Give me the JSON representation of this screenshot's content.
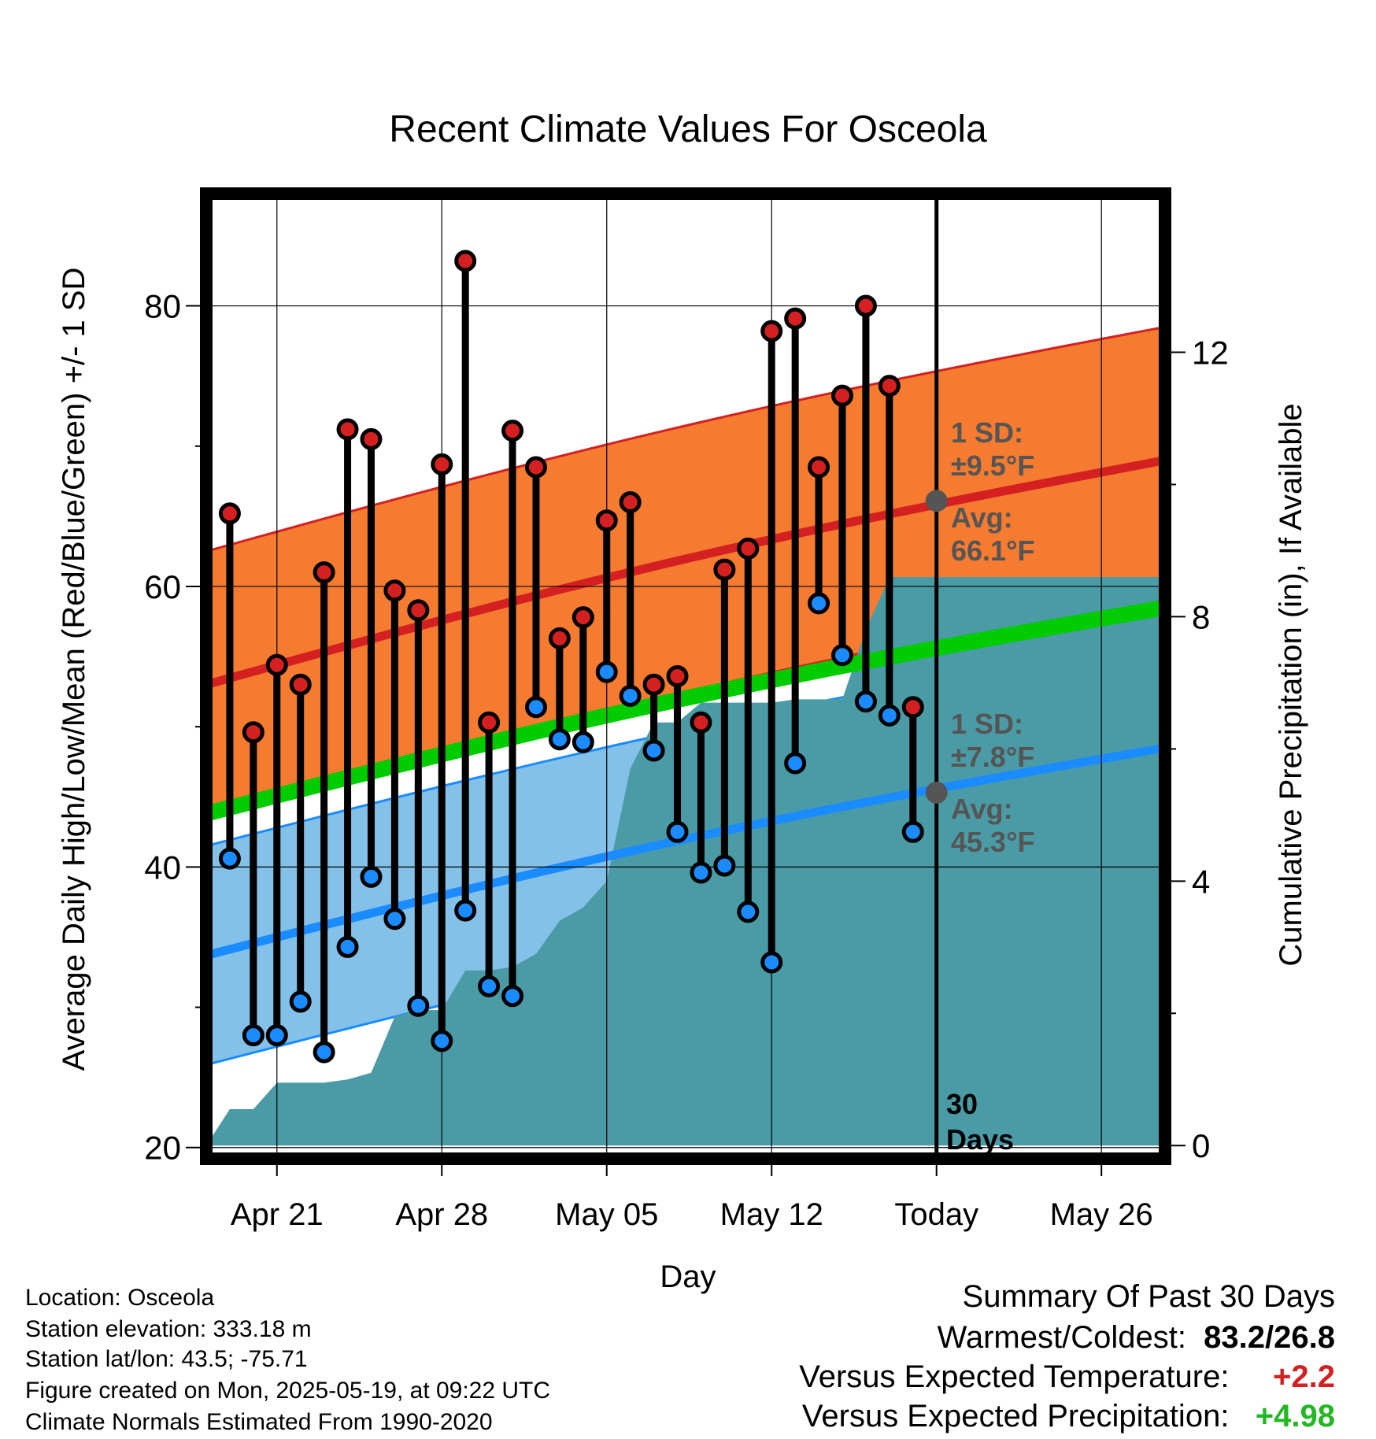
{
  "chart_data": {
    "type": "line",
    "title": "Recent Climate Values For Osceola",
    "xlabel": "Day",
    "ylabel": "Average Daily High/Low/Mean (Red/Blue/Green) +/- 1 SD",
    "y2label": "Cumulative Precipitation (in), If Available",
    "x_tick_labels": [
      "Apr 21",
      "Apr 28",
      "May 05",
      "May 12",
      "Today",
      "May 26"
    ],
    "x_tick_days": [
      2,
      9,
      16,
      23,
      30,
      37
    ],
    "x_range_days": [
      -1,
      39.7
    ],
    "ylim": [
      19.2,
      88
    ],
    "y_ticks": [
      20,
      40,
      60,
      80
    ],
    "y2lim": [
      -0.2,
      14.4
    ],
    "y2_ticks": [
      0,
      4,
      8,
      12
    ],
    "grid": true,
    "colors": {
      "high": "#d42020",
      "high_band": "#f47b30",
      "low": "#1a8cff",
      "low_band": "#84c1e8",
      "mean": "#00cc00",
      "precip": "#4a9ba5",
      "annotation": "#555555"
    },
    "normals": {
      "days": [
        -1,
        39.7
      ],
      "high_avg": [
        53.0,
        69.0
      ],
      "high_sd": 9.5,
      "low_avg": [
        33.7,
        48.5
      ],
      "low_sd": 7.8,
      "mean": [
        43.8,
        58.5
      ]
    },
    "series": [
      {
        "name": "High",
        "x": [
          0,
          1,
          2,
          3,
          4,
          5,
          6,
          7,
          8,
          9,
          10,
          11,
          12,
          13,
          14,
          15,
          16,
          17,
          18,
          19,
          20,
          21,
          22,
          23,
          24,
          25,
          26,
          27,
          28,
          29
        ],
        "values": [
          65.2,
          49.6,
          54.4,
          53.0,
          61.0,
          71.2,
          70.5,
          59.7,
          58.3,
          68.7,
          83.2,
          50.3,
          71.1,
          68.5,
          56.3,
          57.8,
          64.7,
          66.0,
          53.0,
          53.6,
          50.3,
          61.2,
          62.7,
          78.2,
          79.1,
          68.5,
          73.6,
          80.0,
          74.3,
          51.4
        ]
      },
      {
        "name": "Low",
        "x": [
          0,
          1,
          2,
          3,
          4,
          5,
          6,
          7,
          8,
          9,
          10,
          11,
          12,
          13,
          14,
          15,
          16,
          17,
          18,
          19,
          20,
          21,
          22,
          23,
          24,
          25,
          26,
          27,
          28,
          29
        ],
        "values": [
          40.6,
          28.0,
          28.0,
          30.4,
          26.8,
          34.3,
          39.3,
          36.3,
          30.1,
          27.6,
          36.9,
          31.5,
          30.8,
          51.4,
          49.1,
          48.9,
          53.9,
          52.2,
          48.3,
          42.5,
          39.6,
          40.1,
          36.8,
          33.2,
          47.4,
          58.8,
          55.1,
          51.8,
          50.8,
          42.5
        ]
      },
      {
        "name": "Cumulative Precipitation",
        "x": [
          -1,
          0,
          1,
          2,
          3,
          4,
          5,
          6,
          7,
          8,
          9,
          10,
          11,
          12,
          13,
          14,
          15,
          16,
          17,
          18,
          19,
          20,
          21,
          22,
          23,
          24,
          25,
          26,
          27,
          28,
          29,
          39.7
        ],
        "values": [
          0,
          0.55,
          0.55,
          0.95,
          0.95,
          0.95,
          1.0,
          1.1,
          1.95,
          2.05,
          2.05,
          2.65,
          2.65,
          2.7,
          2.9,
          3.4,
          3.6,
          4.0,
          5.7,
          6.4,
          6.4,
          6.7,
          6.7,
          6.7,
          6.7,
          6.75,
          6.75,
          6.75,
          7.8,
          8.6,
          8.6,
          8.6
        ]
      }
    ],
    "annotations": {
      "high_sd_label": "1 SD:",
      "high_sd_value": "±9.5°F",
      "high_avg_label": "Avg:",
      "high_avg_value": "66.1°F",
      "low_sd_label": "1 SD:",
      "low_sd_value": "±7.8°F",
      "low_avg_label": "Avg:",
      "low_avg_value": "45.3°F",
      "today_high_avg": 66.1,
      "today_low_avg": 45.3,
      "days_label_1": "30",
      "days_label_2": "Days"
    }
  },
  "info": {
    "location": "Location: Osceola",
    "elevation": "Station elevation: 333.18 m",
    "latlon": "Station lat/lon: 43.5; -75.71",
    "created": "Figure created on Mon, 2025-05-19, at 09:22 UTC",
    "normals": "Climate Normals Estimated From 1990-2020"
  },
  "summary": {
    "title": "Summary Of Past 30 Days",
    "warm_cold_label": "Warmest/Coldest:",
    "warm_cold_value": "83.2/26.8",
    "temp_label": "Versus Expected Temperature:",
    "temp_value": "+2.2",
    "temp_color": "#d42020",
    "precip_label": "Versus Expected Precipitation:",
    "precip_value": "+4.98",
    "precip_color": "#22b822"
  }
}
